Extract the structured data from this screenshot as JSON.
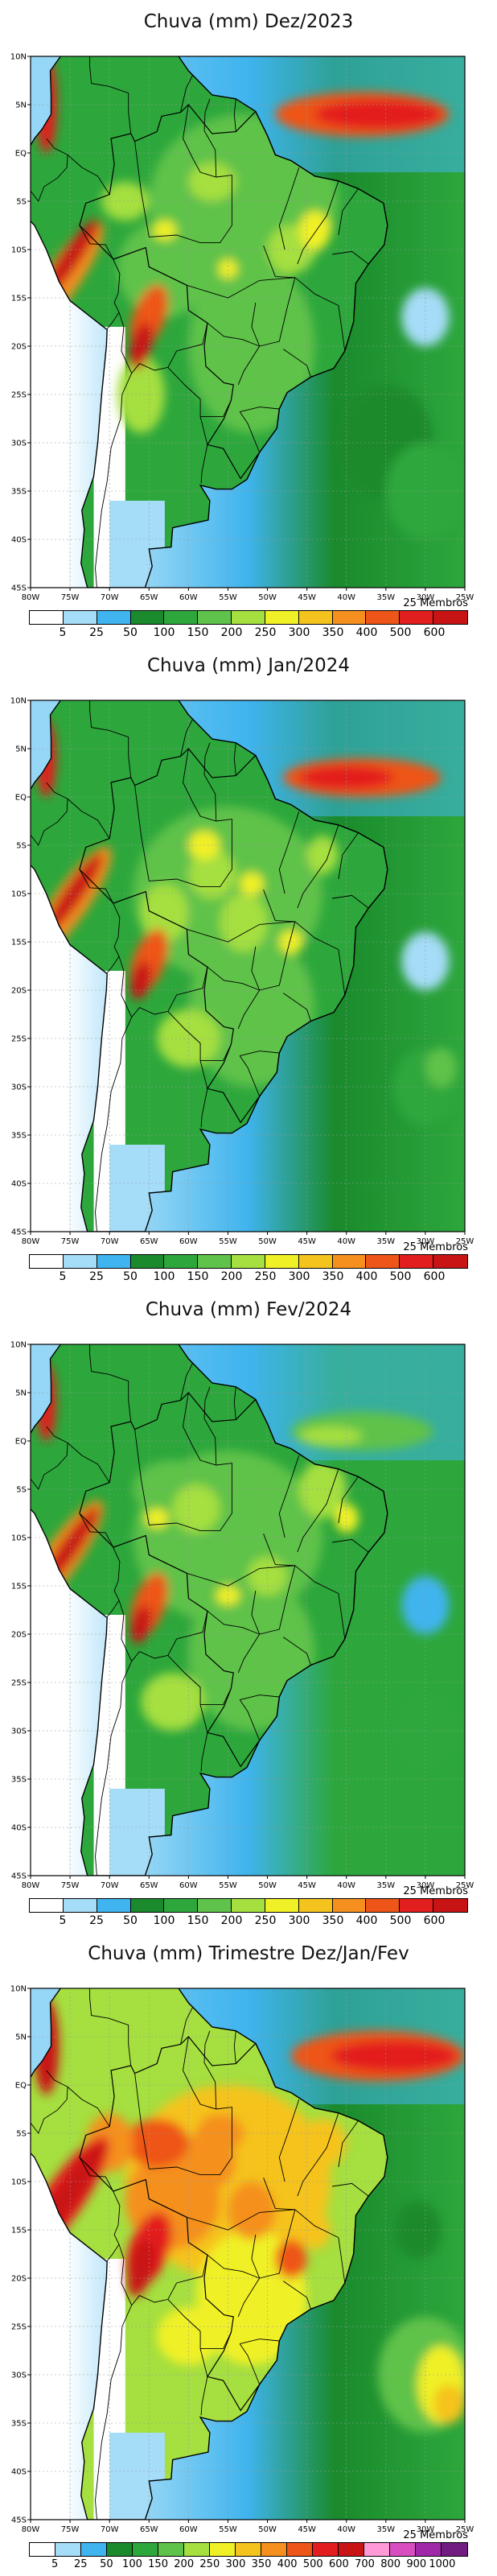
{
  "panels": [
    {
      "title": "Chuva (mm) Dez/2023",
      "variant": "dec",
      "members": "25 Membros",
      "scale": [
        "5",
        "25",
        "50",
        "100",
        "150",
        "200",
        "250",
        "300",
        "350",
        "400",
        "500",
        "600"
      ]
    },
    {
      "title": "Chuva (mm) Jan/2024",
      "variant": "jan",
      "members": "25 Membros",
      "scale": [
        "5",
        "25",
        "50",
        "100",
        "150",
        "200",
        "250",
        "300",
        "350",
        "400",
        "500",
        "600"
      ]
    },
    {
      "title": "Chuva (mm) Fev/2024",
      "variant": "feb",
      "members": "25 Membros",
      "scale": [
        "5",
        "25",
        "50",
        "100",
        "150",
        "200",
        "250",
        "300",
        "350",
        "400",
        "500",
        "600"
      ]
    },
    {
      "title": "Chuva (mm) Trimestre Dez/Jan/Fev",
      "variant": "djf",
      "members": "25 Membros",
      "scale": [
        "5",
        "25",
        "50",
        "100",
        "150",
        "200",
        "250",
        "300",
        "350",
        "400",
        "500",
        "600",
        "700",
        "800",
        "900",
        "1000"
      ]
    }
  ],
  "lat_labels": [
    "10N",
    "5N",
    "EQ",
    "5S",
    "10S",
    "15S",
    "20S",
    "25S",
    "30S",
    "35S",
    "40S",
    "45S"
  ],
  "lon_labels": [
    "80W",
    "75W",
    "70W",
    "65W",
    "60W",
    "55W",
    "50W",
    "45W",
    "40W",
    "35W",
    "30W",
    "25W"
  ],
  "colors": {
    "c0": "#ffffff",
    "c1": "#a5dcf7",
    "c2": "#3fb4ee",
    "c3": "#1a8a2c",
    "c4": "#2da73c",
    "c5": "#5fc24a",
    "c6": "#a5df40",
    "c7": "#f0f026",
    "c8": "#f5c31e",
    "c9": "#f5901e",
    "c10": "#ee5518",
    "c11": "#e31e1e",
    "c12": "#c81414"
  }
}
